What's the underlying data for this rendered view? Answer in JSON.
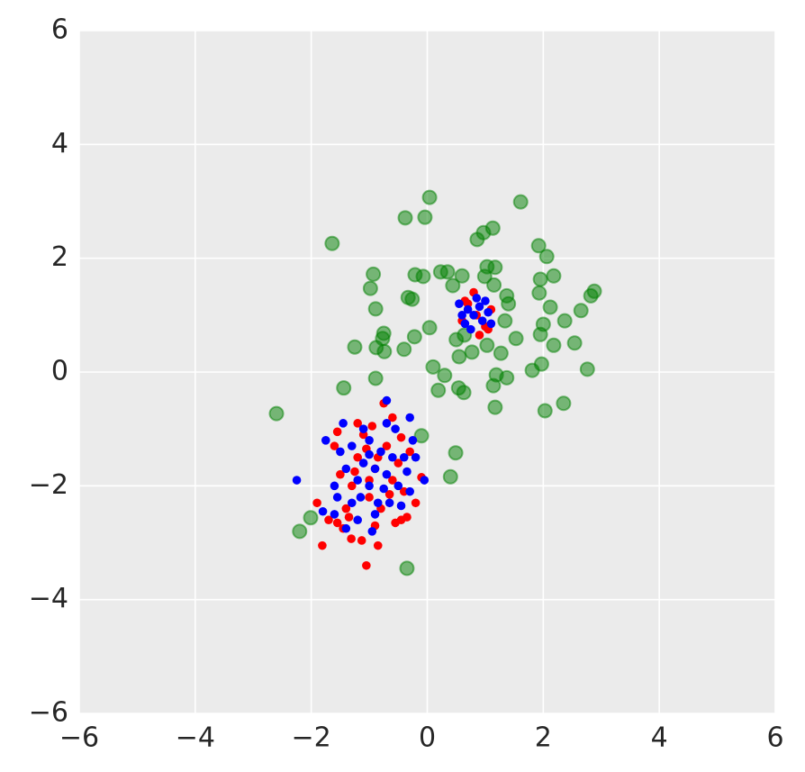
{
  "chart_data": {
    "type": "scatter",
    "xlim": [
      -6,
      6
    ],
    "ylim": [
      -6,
      6
    ],
    "xticks": [
      {
        "value": -6,
        "label": "−6"
      },
      {
        "value": -4,
        "label": "−4"
      },
      {
        "value": -2,
        "label": "−2"
      },
      0,
      2,
      4,
      6
    ],
    "yticks": [
      {
        "value": -6,
        "label": "−6"
      },
      {
        "value": -4,
        "label": "−4"
      },
      {
        "value": -2,
        "label": "−2"
      },
      0,
      2,
      4,
      6
    ],
    "grid": true,
    "series": [
      {
        "color": "green",
        "x": [
          -2.6,
          -1.64,
          0.04,
          -0.38,
          -0.04,
          1.61,
          0.86,
          0.97,
          1.13,
          1.92,
          2.06,
          -0.93,
          -0.98,
          -0.21,
          -0.07,
          0.23,
          0.35,
          0.6,
          1.03,
          1.17,
          0.99,
          1.15,
          0.44,
          -0.33,
          -0.26,
          -0.89,
          1.37,
          1.4,
          1.93,
          1.95,
          2.18,
          2.12,
          2.82,
          2.88,
          2.65,
          2.37,
          2.0,
          1.34,
          0.04,
          -0.75,
          -0.77,
          -0.22,
          -1.25,
          -0.88,
          -0.74,
          -0.4,
          0.5,
          0.64,
          1.03,
          1.27,
          1.53,
          1.95,
          2.18,
          2.54,
          0.77,
          0.55,
          0.1,
          1.97,
          1.81,
          2.76,
          1.19,
          1.37,
          0.3,
          -0.89,
          1.14,
          0.19,
          0.54,
          0.63,
          -1.44,
          1.17,
          2.03,
          2.35,
          0.49,
          0.4,
          -2.01,
          -2.2,
          -0.35,
          -0.1
        ],
        "values": [
          -0.73,
          2.26,
          3.07,
          2.71,
          2.72,
          2.99,
          2.33,
          2.45,
          2.53,
          2.22,
          2.03,
          1.72,
          1.47,
          1.71,
          1.68,
          1.76,
          1.76,
          1.69,
          1.85,
          1.84,
          1.68,
          1.53,
          1.52,
          1.31,
          1.28,
          1.11,
          1.34,
          1.2,
          1.39,
          1.63,
          1.69,
          1.14,
          1.34,
          1.42,
          1.08,
          0.9,
          0.84,
          0.9,
          0.78,
          0.68,
          0.59,
          0.62,
          0.44,
          0.43,
          0.36,
          0.4,
          0.57,
          0.65,
          0.47,
          0.33,
          0.59,
          0.66,
          0.47,
          0.51,
          0.35,
          0.27,
          0.09,
          0.14,
          0.03,
          0.05,
          -0.05,
          -0.1,
          -0.06,
          -0.11,
          -0.24,
          -0.32,
          -0.28,
          -0.36,
          -0.28,
          -0.62,
          -0.68,
          -0.55,
          -1.42,
          -1.84,
          -2.56,
          -2.8,
          -3.45,
          -1.12
        ]
      },
      {
        "color": "red",
        "x": [
          -0.9,
          -1.2,
          -0.6,
          -1.0,
          -0.7,
          -1.3,
          -0.5,
          -1.1,
          -0.8,
          -1.5,
          -0.4,
          -1.4,
          -0.3,
          -1.6,
          -0.2,
          -1.7,
          -0.6,
          -1.2,
          -0.9,
          -0.35,
          -1.9,
          -0.1,
          -1.45,
          -0.55,
          -0.75,
          -1.0,
          -0.85,
          -1.25,
          -0.65,
          -1.05,
          -1.55,
          -0.45,
          -1.35,
          -0.95,
          -1.81,
          -1.05,
          -0.85,
          -1.13,
          -1.31,
          -1.55,
          -0.45,
          0.85,
          0.7,
          1.0,
          0.6,
          1.1,
          0.8,
          0.9,
          0.65,
          1.05
        ],
        "values": [
          -1.7,
          -1.5,
          -1.9,
          -2.2,
          -1.3,
          -2.0,
          -1.6,
          -1.1,
          -2.4,
          -1.8,
          -2.1,
          -2.4,
          -1.4,
          -1.3,
          -2.3,
          -2.6,
          -0.8,
          -0.9,
          -2.7,
          -2.55,
          -2.3,
          -1.85,
          -2.75,
          -2.65,
          -0.55,
          -1.9,
          -1.5,
          -1.75,
          -2.15,
          -1.35,
          -1.05,
          -1.15,
          -2.55,
          -0.95,
          -3.05,
          -3.4,
          -3.05,
          -2.96,
          -2.93,
          -2.65,
          -2.6,
          1.0,
          1.2,
          0.8,
          0.9,
          1.1,
          1.4,
          0.65,
          1.25,
          0.75
        ]
      },
      {
        "color": "blue",
        "x": [
          -0.9,
          -1.1,
          -0.7,
          -1.0,
          -0.8,
          -1.2,
          -0.6,
          -1.0,
          -0.85,
          -1.4,
          -0.5,
          -1.3,
          -0.4,
          -1.5,
          -0.3,
          -1.6,
          -0.7,
          -1.1,
          -0.9,
          -0.45,
          -1.8,
          -0.05,
          -2.25,
          -0.7,
          -0.3,
          -0.25,
          -1.75,
          -1.4,
          -0.95,
          -1.2,
          -0.65,
          -1.3,
          -0.55,
          -1.6,
          -1.0,
          -0.75,
          -1.15,
          -0.35,
          -1.45,
          -0.2,
          -1.55,
          0.8,
          0.7,
          0.95,
          0.6,
          1.05,
          0.85,
          0.75,
          0.55,
          1.1,
          0.9,
          0.65,
          1.0
        ],
        "values": [
          -1.7,
          -1.6,
          -1.8,
          -2.0,
          -1.4,
          -1.9,
          -1.5,
          -1.2,
          -2.3,
          -1.7,
          -2.0,
          -2.3,
          -1.5,
          -1.4,
          -2.1,
          -2.5,
          -0.9,
          -1.0,
          -2.5,
          -2.35,
          -2.45,
          -1.9,
          -1.9,
          -0.5,
          -0.8,
          -1.2,
          -1.2,
          -2.75,
          -2.8,
          -2.6,
          -2.3,
          -1.3,
          -1.0,
          -2.0,
          -1.45,
          -2.05,
          -2.2,
          -1.75,
          -0.9,
          -1.5,
          -2.2,
          1.0,
          1.1,
          0.9,
          1.0,
          1.05,
          1.3,
          0.75,
          1.2,
          0.85,
          1.15,
          0.85,
          1.25
        ]
      }
    ]
  }
}
